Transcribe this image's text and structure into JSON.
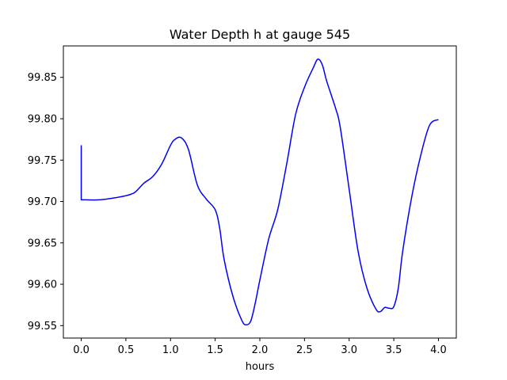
{
  "chart_data": {
    "type": "line",
    "title": "Water Depth h at gauge 545",
    "xlabel": "hours",
    "ylabel": "",
    "xlim": [
      -0.2,
      4.2
    ],
    "ylim": [
      99.535,
      99.888
    ],
    "xticks": [
      0.0,
      0.5,
      1.0,
      1.5,
      2.0,
      2.5,
      3.0,
      3.5,
      4.0
    ],
    "xtick_labels": [
      "0.0",
      "0.5",
      "1.0",
      "1.5",
      "2.0",
      "2.5",
      "3.0",
      "3.5",
      "4.0"
    ],
    "yticks": [
      99.55,
      99.6,
      99.65,
      99.7,
      99.75,
      99.8,
      99.85
    ],
    "ytick_labels": [
      "99.55",
      "99.60",
      "99.65",
      "99.70",
      "99.75",
      "99.80",
      "99.85"
    ],
    "grid": false,
    "series": [
      {
        "color": "#0000ff",
        "x": [
          0.0,
          0.0,
          0.05,
          0.2,
          0.35,
          0.5,
          0.6,
          0.7,
          0.8,
          0.9,
          1.0,
          1.05,
          1.12,
          1.2,
          1.3,
          1.4,
          1.5,
          1.55,
          1.6,
          1.7,
          1.8,
          1.85,
          1.9,
          1.95,
          2.0,
          2.1,
          2.2,
          2.3,
          2.4,
          2.5,
          2.6,
          2.65,
          2.7,
          2.75,
          2.85,
          2.9,
          3.0,
          3.1,
          3.2,
          3.3,
          3.35,
          3.4,
          3.45,
          3.5,
          3.55,
          3.6,
          3.7,
          3.8,
          3.9,
          4.0
        ],
        "y": [
          99.768,
          99.702,
          99.702,
          99.702,
          99.704,
          99.707,
          99.711,
          99.722,
          99.73,
          99.745,
          99.768,
          99.775,
          99.777,
          99.763,
          99.72,
          99.703,
          99.69,
          99.668,
          99.63,
          99.585,
          99.556,
          99.551,
          99.556,
          99.578,
          99.605,
          99.655,
          99.69,
          99.745,
          99.805,
          99.838,
          99.862,
          99.872,
          99.865,
          99.845,
          99.812,
          99.79,
          99.715,
          99.64,
          99.595,
          99.57,
          99.567,
          99.572,
          99.571,
          99.573,
          99.595,
          99.64,
          99.705,
          99.755,
          99.792,
          99.799
        ]
      }
    ]
  }
}
